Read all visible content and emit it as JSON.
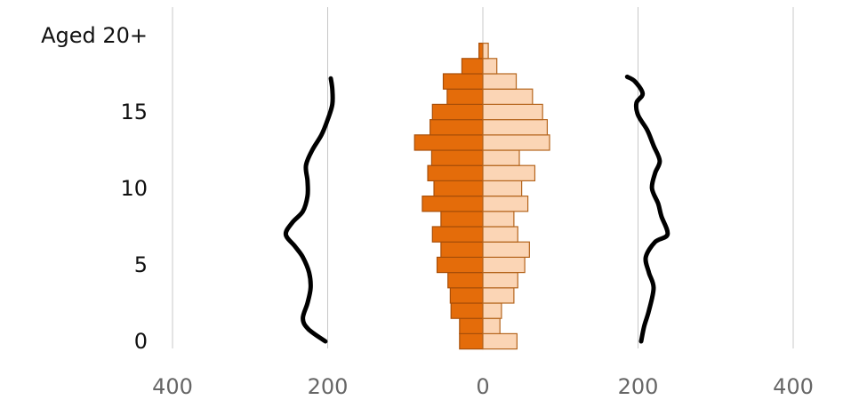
{
  "chart_data": {
    "type": "bar",
    "orientation": "horizontal",
    "layout": "population-pyramid",
    "ylabels": [
      {
        "value": 0,
        "label": "0"
      },
      {
        "value": 5,
        "label": "5"
      },
      {
        "value": 10,
        "label": "10"
      },
      {
        "value": 15,
        "label": "15"
      },
      {
        "value": 20,
        "label": "Aged 20+"
      }
    ],
    "xticks": [
      {
        "value": -400,
        "label": "400"
      },
      {
        "value": -200,
        "label": "200"
      },
      {
        "value": 0,
        "label": "0"
      },
      {
        "value": 200,
        "label": "200"
      },
      {
        "value": 400,
        "label": "400"
      }
    ],
    "xlim": [
      -400,
      400
    ],
    "ylim": [
      -0.5,
      20.5
    ],
    "grid": "vertical",
    "ages": [
      0,
      1,
      2,
      3,
      4,
      5,
      6,
      7,
      8,
      9,
      10,
      11,
      12,
      13,
      14,
      15,
      16,
      17,
      18,
      19,
      20
    ],
    "series": [
      {
        "side": "left",
        "color": "#E46C0A",
        "stroke": "#A84E08",
        "values": [
          30,
          30,
          41,
          42,
          45,
          59,
          54,
          65,
          54,
          78,
          63,
          71,
          66,
          88,
          68,
          65,
          46,
          51,
          27,
          5,
          0
        ]
      },
      {
        "side": "right",
        "color": "#FBD5B5",
        "stroke": "#B5651D",
        "values": [
          44,
          22,
          24,
          40,
          45,
          54,
          60,
          45,
          40,
          58,
          50,
          67,
          47,
          86,
          83,
          77,
          64,
          43,
          18,
          7,
          0
        ]
      }
    ],
    "outline_left": [
      [
        -203,
        0
      ],
      [
        -225,
        0.8
      ],
      [
        -232,
        1.5
      ],
      [
        -226,
        2.5
      ],
      [
        -222,
        3.5
      ],
      [
        -224,
        4.5
      ],
      [
        -232,
        5.5
      ],
      [
        -242,
        6.2
      ],
      [
        -254,
        7
      ],
      [
        -245,
        7.8
      ],
      [
        -232,
        8.5
      ],
      [
        -226,
        9.5
      ],
      [
        -226,
        10.5
      ],
      [
        -228,
        11.5
      ],
      [
        -220,
        12.5
      ],
      [
        -208,
        13.5
      ],
      [
        -200,
        14.5
      ],
      [
        -194,
        15.5
      ],
      [
        -194,
        16.5
      ],
      [
        -196,
        17.2
      ]
    ],
    "outline_right": [
      [
        204,
        0
      ],
      [
        208,
        1
      ],
      [
        214,
        2
      ],
      [
        220,
        3.5
      ],
      [
        214,
        4.5
      ],
      [
        210,
        5.5
      ],
      [
        222,
        6.5
      ],
      [
        238,
        7
      ],
      [
        230,
        8.2
      ],
      [
        226,
        9
      ],
      [
        218,
        10
      ],
      [
        222,
        11
      ],
      [
        228,
        11.8
      ],
      [
        220,
        12.8
      ],
      [
        212,
        13.8
      ],
      [
        200,
        14.8
      ],
      [
        198,
        15.6
      ],
      [
        206,
        16.2
      ],
      [
        196,
        17
      ],
      [
        186,
        17.3
      ]
    ]
  }
}
